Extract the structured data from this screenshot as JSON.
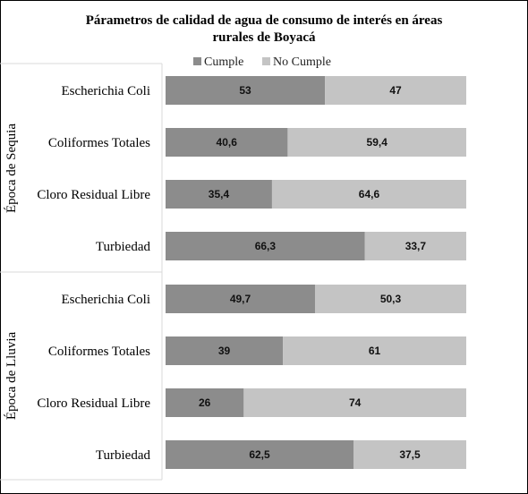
{
  "chart_data": {
    "type": "bar",
    "orientation": "horizontal",
    "stacked": true,
    "title_line1": "Párametros  de calidad de agua de consumo  de interés en áreas",
    "title_line2": "rurales de Boyacá",
    "legend_position": "top",
    "grid": false,
    "xlim": [
      0,
      100
    ],
    "series": [
      {
        "name": "Cumple",
        "color": "#8c8c8c"
      },
      {
        "name": "No Cumple",
        "color": "#c4c4c4"
      }
    ],
    "groups": [
      {
        "name": "Época de Sequia",
        "rows": [
          {
            "category": "Escherichia Coli",
            "values": [
              53,
              47
            ],
            "labels": [
              "53",
              "47"
            ]
          },
          {
            "category": "Coliformes Totales",
            "values": [
              40.6,
              59.4
            ],
            "labels": [
              "40,6",
              "59,4"
            ]
          },
          {
            "category": "Cloro Residual Libre",
            "values": [
              35.4,
              64.6
            ],
            "labels": [
              "35,4",
              "64,6"
            ]
          },
          {
            "category": "Turbiedad",
            "values": [
              66.3,
              33.7
            ],
            "labels": [
              "66,3",
              "33,7"
            ]
          }
        ]
      },
      {
        "name": "Época de Lluvia",
        "rows": [
          {
            "category": "Escherichia Coli",
            "values": [
              49.7,
              50.3
            ],
            "labels": [
              "49,7",
              "50,3"
            ]
          },
          {
            "category": "Coliformes Totales",
            "values": [
              39,
              61
            ],
            "labels": [
              "39",
              "61"
            ]
          },
          {
            "category": "Cloro Residual Libre",
            "values": [
              26,
              74
            ],
            "labels": [
              "26",
              "74"
            ]
          },
          {
            "category": "Turbiedad",
            "values": [
              62.5,
              37.5
            ],
            "labels": [
              "62,5",
              "37,5"
            ]
          }
        ]
      }
    ]
  }
}
